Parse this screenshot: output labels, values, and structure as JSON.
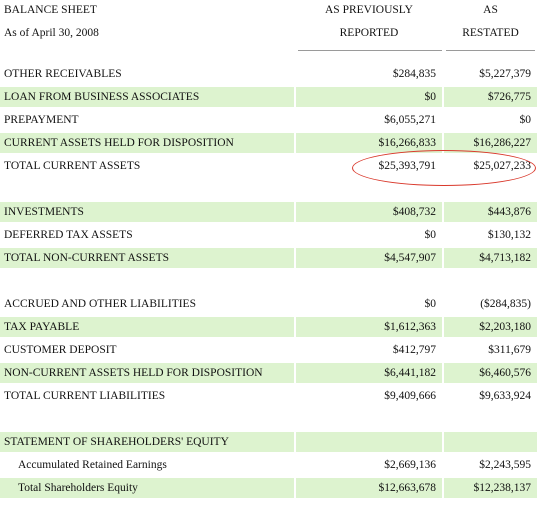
{
  "header": {
    "title": "BALANCE SHEET",
    "date": "As of April 30, 2008",
    "col1_line1": "AS PREVIOUSLY",
    "col1_line2": "REPORTED",
    "col2_line1": "AS",
    "col2_line2": "RESTATED"
  },
  "sections": [
    {
      "rows": [
        {
          "label": "OTHER RECEIVABLES",
          "reported": "$284,835",
          "restated": "$5,227,379",
          "shaded": false
        },
        {
          "label": "LOAN FROM BUSINESS ASSOCIATES",
          "reported": "$0",
          "restated": "$726,775",
          "shaded": true
        },
        {
          "label": "PREPAYMENT",
          "reported": "$6,055,271",
          "restated": "$0",
          "shaded": false
        },
        {
          "label": "CURRENT ASSETS HELD FOR DISPOSITION",
          "reported": "$16,266,833",
          "restated": "$16,286,227",
          "shaded": true
        },
        {
          "label": "TOTAL CURRENT ASSETS",
          "reported": "$25,393,791",
          "restated": "$25,027,233",
          "shaded": false,
          "highlighted": true
        }
      ]
    },
    {
      "rows": [
        {
          "label": "INVESTMENTS",
          "reported": "$408,732",
          "restated": "$443,876",
          "shaded": true
        },
        {
          "label": "DEFERRED TAX ASSETS",
          "reported": "$0",
          "restated": "$130,132",
          "shaded": false
        },
        {
          "label": "TOTAL NON-CURRENT ASSETS",
          "reported": "$4,547,907",
          "restated": "$4,713,182",
          "shaded": true
        }
      ]
    },
    {
      "rows": [
        {
          "label": "ACCRUED AND OTHER LIABILITIES",
          "reported": "$0",
          "restated": "($284,835)",
          "shaded": false
        },
        {
          "label": "TAX PAYABLE",
          "reported": "$1,612,363",
          "restated": "$2,203,180",
          "shaded": true
        },
        {
          "label": "CUSTOMER DEPOSIT",
          "reported": "$412,797",
          "restated": "$311,679",
          "shaded": false
        },
        {
          "label": "NON-CURRENT ASSETS HELD FOR DISPOSITION",
          "reported": "$6,441,182",
          "restated": "$6,460,576",
          "shaded": true
        },
        {
          "label": "TOTAL CURRENT LIABILITIES",
          "reported": "$9,409,666",
          "restated": "$9,633,924",
          "shaded": false
        }
      ]
    },
    {
      "rows": [
        {
          "label": "STATEMENT OF SHAREHOLDERS' EQUITY",
          "reported": "",
          "restated": "",
          "shaded": true
        },
        {
          "label": "Accumulated Retained Earnings",
          "reported": "$2,669,136",
          "restated": "$2,243,595",
          "shaded": false,
          "indented": true
        },
        {
          "label": "Total Shareholders Equity",
          "reported": "$12,663,678",
          "restated": "$12,238,137",
          "shaded": true,
          "indented": true
        }
      ]
    }
  ],
  "colors": {
    "row_shade": "#ddf3cf",
    "highlight_oval": "#d9382b"
  }
}
